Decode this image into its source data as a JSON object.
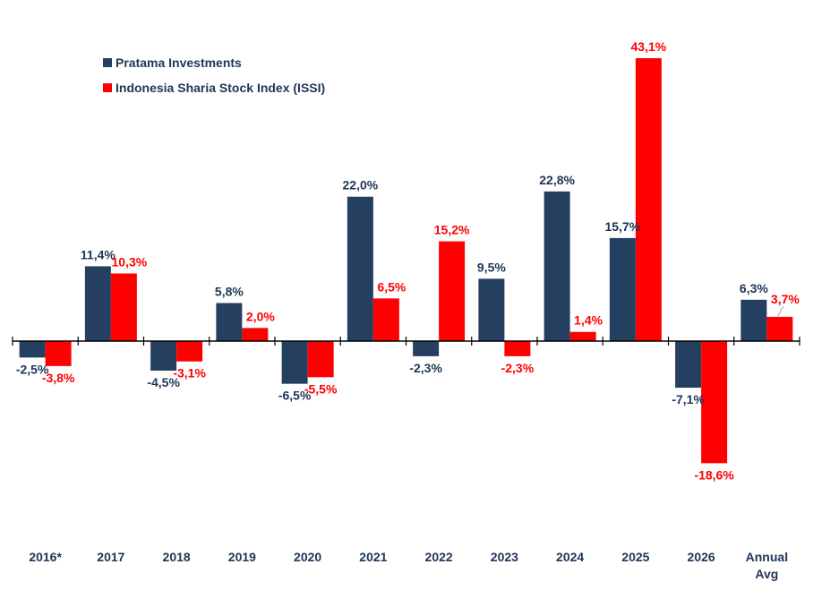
{
  "chart_data": {
    "type": "bar",
    "title": "",
    "xlabel": "",
    "ylabel": "",
    "ylim": [
      -43.1,
      43.1
    ],
    "grid": false,
    "legend_position": "top-left",
    "categories": [
      "2016*",
      "2017",
      "2018",
      "2019",
      "2020",
      "2021",
      "2022",
      "2023",
      "2024",
      "2025",
      "2026",
      "Annual Avg"
    ],
    "series": [
      {
        "name": "Pratama Investments",
        "color": "#243f60",
        "values": [
          -2.5,
          11.4,
          -4.5,
          5.8,
          -6.5,
          22.0,
          -2.3,
          9.5,
          22.8,
          15.7,
          -7.1,
          6.3
        ],
        "labels": [
          "-2,5%",
          "11,4%",
          "-4,5%",
          "5,8%",
          "-6,5%",
          "22,0%",
          "-2,3%",
          "9,5%",
          "22,8%",
          "15,7%",
          "-7,1%",
          "6,3%"
        ]
      },
      {
        "name": "Indonesia Sharia Stock Index (ISSI)",
        "color": "#ff0000",
        "values": [
          -3.8,
          10.3,
          -3.1,
          2.0,
          -5.5,
          6.5,
          15.2,
          -2.3,
          1.4,
          43.1,
          -18.6,
          3.7
        ],
        "labels": [
          "-3,8%",
          "10,3%",
          "-3,1%",
          "2,0%",
          "-5,5%",
          "6,5%",
          "15,2%",
          "-2,3%",
          "1,4%",
          "43,1%",
          "-18,6%",
          "3,7%"
        ]
      }
    ]
  }
}
